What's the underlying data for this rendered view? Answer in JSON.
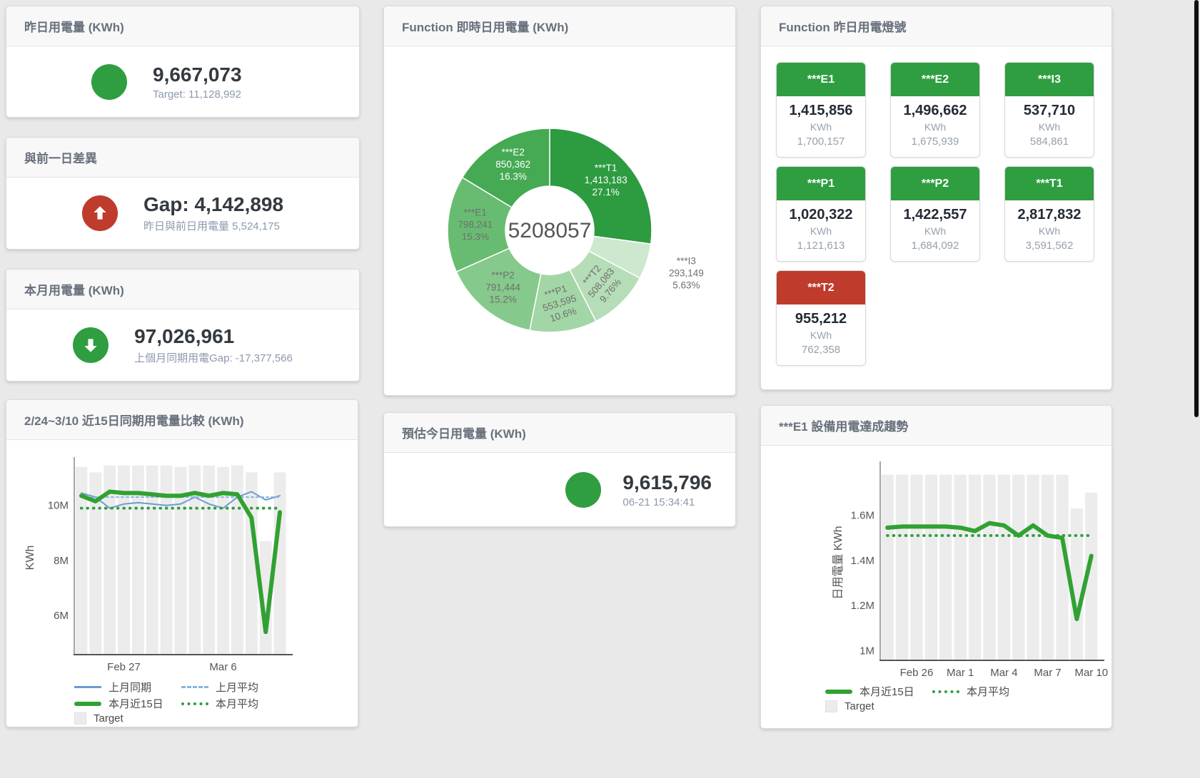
{
  "theme": {
    "green": "#2f9e41",
    "red": "#bf3b2b",
    "blue": "#6c9bd0",
    "blue_light": "#8ab3de",
    "green_line": "#31a132",
    "bar_gray": "#ececec",
    "title_text": "#68707c",
    "sub_text": "#8d99ae"
  },
  "cards": {
    "yesterday": {
      "title": "昨日用電量 (KWh)",
      "value": "9,667,073",
      "sub": "Target: 11,128,992"
    },
    "diff": {
      "title": "與前一日差異",
      "value": "Gap: 4,142,898",
      "sub": "昨日與前日用電量 5,524,175"
    },
    "month": {
      "title": "本月用電量 (KWh)",
      "value": "97,026,961",
      "sub": "上個月同期用電Gap: -17,377,566"
    },
    "realtime": {
      "title": "Function 即時日用電量 (KWh)"
    },
    "estimate": {
      "title": "預估今日用電量 (KWh)",
      "value": "9,615,796",
      "sub": "06-21 15:34:41"
    },
    "lights": {
      "title": "Function 昨日用電燈號",
      "unit": "KWh",
      "tiles": [
        {
          "name": "***E1",
          "value": "1,415,856",
          "target": "1,700,157",
          "status": "green"
        },
        {
          "name": "***E2",
          "value": "1,496,662",
          "target": "1,675,939",
          "status": "green"
        },
        {
          "name": "***I3",
          "value": "537,710",
          "target": "584,861",
          "status": "green"
        },
        {
          "name": "***P1",
          "value": "1,020,322",
          "target": "1,121,613",
          "status": "green"
        },
        {
          "name": "***P2",
          "value": "1,422,557",
          "target": "1,684,092",
          "status": "green"
        },
        {
          "name": "***T1",
          "value": "2,817,832",
          "target": "3,591,562",
          "status": "green"
        },
        {
          "name": "***T2",
          "value": "955,212",
          "target": "762,358",
          "status": "red"
        }
      ]
    },
    "compare": {
      "title": "2/24~3/10 近15日同期用電量比較 (KWh)",
      "legend": [
        "上月同期",
        "上月平均",
        "本月近15日",
        "本月平均",
        "Target"
      ]
    },
    "trend": {
      "title": "***E1 設備用電達成趨勢",
      "legend": [
        "本月近15日",
        "本月平均",
        "Target"
      ]
    }
  },
  "chart_data": [
    {
      "id": "donut",
      "type": "pie",
      "title": "Function 即時日用電量 (KWh)",
      "center_label": "5208057",
      "total": 5208057,
      "slices": [
        {
          "name": "***T1",
          "value": 1413183,
          "value_text": "1,413,183",
          "pct": "27.1%",
          "color": "#2d9b40",
          "label_color": "#ffffff"
        },
        {
          "name": "***I3",
          "value": 293149,
          "value_text": "293,149",
          "pct": "5.63%",
          "color": "#cde8cf",
          "label_color": "#6f6f6f",
          "outside": true
        },
        {
          "name": "***T2",
          "value": 508083,
          "value_text": "508,083",
          "pct": "9.76%",
          "color": "#b5ddb7",
          "label_color": "#6f6f6f",
          "rotate": -50
        },
        {
          "name": "***P1",
          "value": 553595,
          "value_text": "553,595",
          "pct": "10.6%",
          "color": "#a3d6a6",
          "label_color": "#6f6f6f",
          "rotate": -18
        },
        {
          "name": "***P2",
          "value": 791444,
          "value_text": "791,444",
          "pct": "15.2%",
          "color": "#86c98c",
          "label_color": "#6f6f6f"
        },
        {
          "name": "***E1",
          "value": 798241,
          "value_text": "798,241",
          "pct": "15.3%",
          "color": "#68bc71",
          "label_color": "#6f6f6f"
        },
        {
          "name": "***E2",
          "value": 850362,
          "value_text": "850,362",
          "pct": "16.3%",
          "color": "#45aa53",
          "label_color": "#ffffff"
        }
      ]
    },
    {
      "id": "compare",
      "type": "line",
      "title": "2/24~3/10 近15日同期用電量比較 (KWh)",
      "ylabel": "KWh",
      "ylim": [
        4.6,
        11.6
      ],
      "yticks": [
        {
          "v": 6,
          "label": "6M"
        },
        {
          "v": 8,
          "label": "8M"
        },
        {
          "v": 10,
          "label": "10M"
        }
      ],
      "categories": [
        "2/24",
        "2/25",
        "2/26",
        "2/27",
        "2/28",
        "3/1",
        "3/2",
        "3/3",
        "3/4",
        "3/5",
        "3/6",
        "3/7",
        "3/8",
        "3/9",
        "3/10"
      ],
      "xticks": [
        {
          "i": 3,
          "label": "Feb 27"
        },
        {
          "i": 10,
          "label": "Mar 6"
        }
      ],
      "target_bars": [
        11.4,
        11.2,
        11.45,
        11.45,
        11.45,
        11.45,
        11.45,
        11.4,
        11.45,
        11.45,
        11.4,
        11.45,
        11.2,
        8.7,
        11.2
      ],
      "series": [
        {
          "name": "上月同期",
          "style": "blue-line",
          "values": [
            10.45,
            10.3,
            9.9,
            10.05,
            10.1,
            10.05,
            10.0,
            10.05,
            10.3,
            10.05,
            9.9,
            10.3,
            10.5,
            10.2,
            10.35
          ]
        },
        {
          "name": "上月平均",
          "style": "blue-dash",
          "values": [
            10.3,
            10.3,
            10.3,
            10.3,
            10.3,
            10.3,
            10.3,
            10.3,
            10.3,
            10.3,
            10.3,
            10.3,
            10.3,
            10.3,
            10.3
          ]
        },
        {
          "name": "本月平均",
          "style": "green-dot",
          "values": [
            9.9,
            9.9,
            9.9,
            9.9,
            9.9,
            9.9,
            9.9,
            9.9,
            9.9,
            9.9,
            9.9,
            9.9,
            9.9,
            9.9,
            9.9
          ]
        },
        {
          "name": "本月近15日",
          "style": "green-thick",
          "values": [
            10.35,
            10.15,
            10.5,
            10.45,
            10.45,
            10.4,
            10.35,
            10.35,
            10.45,
            10.35,
            10.45,
            10.4,
            9.55,
            5.4,
            9.75
          ]
        }
      ],
      "legend_position": "bottom"
    },
    {
      "id": "trend",
      "type": "line",
      "title": "***E1 設備用電達成趨勢",
      "ylabel": "日用電量 KWh",
      "ylim": [
        0.96,
        1.82
      ],
      "yticks": [
        {
          "v": 1,
          "label": "1M"
        },
        {
          "v": 1.2,
          "label": "1.2M"
        },
        {
          "v": 1.4,
          "label": "1.4M"
        },
        {
          "v": 1.6,
          "label": "1.6M"
        }
      ],
      "categories": [
        "2/24",
        "2/25",
        "2/26",
        "2/27",
        "2/28",
        "3/1",
        "3/2",
        "3/3",
        "3/4",
        "3/5",
        "3/6",
        "3/7",
        "3/8",
        "3/9",
        "3/10"
      ],
      "xticks": [
        {
          "i": 2,
          "label": "Feb 26"
        },
        {
          "i": 5,
          "label": "Mar 1"
        },
        {
          "i": 8,
          "label": "Mar 4"
        },
        {
          "i": 11,
          "label": "Mar 7"
        },
        {
          "i": 14,
          "label": "Mar 10"
        }
      ],
      "target_bars": [
        1.78,
        1.78,
        1.78,
        1.78,
        1.78,
        1.78,
        1.78,
        1.78,
        1.78,
        1.78,
        1.78,
        1.78,
        1.78,
        1.63,
        1.7
      ],
      "series": [
        {
          "name": "本月平均",
          "style": "green-dot",
          "values": [
            1.51,
            1.51,
            1.51,
            1.51,
            1.51,
            1.51,
            1.51,
            1.51,
            1.51,
            1.51,
            1.51,
            1.51,
            1.51,
            1.51,
            1.51
          ]
        },
        {
          "name": "本月近15日",
          "style": "green-thick",
          "values": [
            1.545,
            1.55,
            1.55,
            1.55,
            1.55,
            1.545,
            1.53,
            1.565,
            1.555,
            1.51,
            1.555,
            1.51,
            1.5,
            1.14,
            1.42
          ]
        }
      ],
      "legend_position": "bottom"
    }
  ]
}
